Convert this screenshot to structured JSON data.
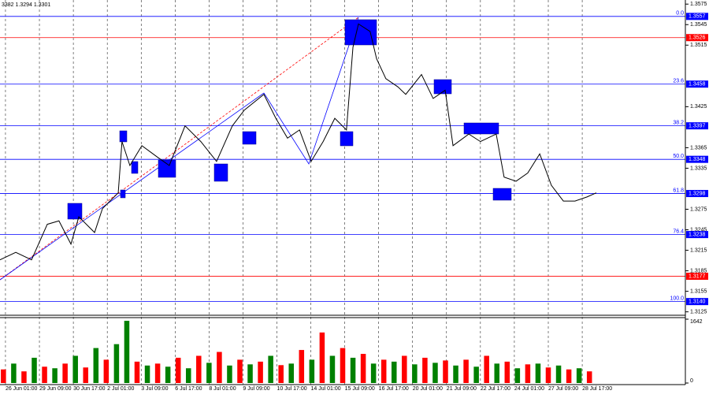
{
  "chart_data": {
    "type": "line",
    "header": "3382 1.3294 1.3301",
    "x": [
      0,
      4.6,
      9.2,
      13.8,
      17.2,
      20.7,
      23,
      27.6,
      29.9,
      34.5,
      35.6,
      37.9,
      41.4,
      46,
      49.4,
      54,
      58.6,
      63.2,
      67.8,
      71.3,
      77,
      80.5,
      83.9,
      87.4,
      90.8,
      94.3,
      97.7,
      101.1,
      103,
      104.6,
      108,
      109.9,
      112.6,
      116.1,
      118.4,
      123,
      126.4,
      129.9,
      132.2,
      136.8,
      140.2,
      144.8,
      147.1,
      150.6,
      154,
      157.5,
      160.9,
      164.4,
      167.8,
      171.3,
      174
    ],
    "series": [
      {
        "color": "#000000",
        "values": [
          1.3201,
          1.3212,
          1.3201,
          1.3253,
          1.3258,
          1.3224,
          1.3264,
          1.3241,
          1.3276,
          1.3299,
          1.3374,
          1.3339,
          1.3368,
          1.3351,
          1.3339,
          1.3397,
          1.3374,
          1.3345,
          1.3397,
          1.342,
          1.3443,
          1.3408,
          1.3379,
          1.3391,
          1.3345,
          1.3374,
          1.3408,
          1.3391,
          1.3512,
          1.3546,
          1.3535,
          1.3495,
          1.3466,
          1.3454,
          1.3443,
          1.3472,
          1.3437,
          1.3449,
          1.3368,
          1.3385,
          1.3374,
          1.3385,
          1.3322,
          1.3316,
          1.3328,
          1.3356,
          1.331,
          1.3287,
          1.3287,
          1.3293,
          1.3299
        ]
      }
    ],
    "xlim": [
      0,
      200
    ],
    "ylim": [
      1.312,
      1.3581
    ],
    "xticks": [
      {
        "value": 1.6,
        "label": "26 Jun 01:00"
      },
      {
        "value": 11.5,
        "label": "29 Jun 09:00"
      },
      {
        "value": 21.4,
        "label": "30 Jun 17:00"
      },
      {
        "value": 31.3,
        "label": "2 Jul 01:00"
      },
      {
        "value": 41.2,
        "label": "3 Jul 09:00"
      },
      {
        "value": 51.1,
        "label": "6 Jul 17:00"
      },
      {
        "value": 61,
        "label": "8 Jul 01:00"
      },
      {
        "value": 70.9,
        "label": "9 Jul 09:00"
      },
      {
        "value": 80.8,
        "label": "10 Jul 17:00"
      },
      {
        "value": 90.7,
        "label": "14 Jul 01:00"
      },
      {
        "value": 100.6,
        "label": "15 Jul 09:00"
      },
      {
        "value": 110.5,
        "label": "16 Jul 17:00"
      },
      {
        "value": 120.4,
        "label": "20 Jul 01:00"
      },
      {
        "value": 130.3,
        "label": "21 Jul 09:00"
      },
      {
        "value": 140.2,
        "label": "22 Jul 17:00"
      },
      {
        "value": 150.1,
        "label": "24 Jul 01:00"
      },
      {
        "value": 160,
        "label": "27 Jul 09:00"
      },
      {
        "value": 169.9,
        "label": "28 Jul 17:00"
      }
    ],
    "yticks": [
      1.3575,
      1.3545,
      1.3515,
      1.3425,
      1.3365,
      1.3335,
      1.3275,
      1.3245,
      1.3215,
      1.3185,
      1.3155,
      1.3125
    ],
    "levels": [
      {
        "value": 1.3557,
        "label": "1.3557",
        "fib": "0.0",
        "color": "#0000ff"
      },
      {
        "value": 1.3526,
        "label": "1.3526",
        "color": "#ff0000"
      },
      {
        "value": 1.3458,
        "label": "1.3458",
        "fib": "23.6",
        "color": "#0000ff"
      },
      {
        "value": 1.3397,
        "label": "1.3397",
        "fib": "38.2",
        "color": "#0000ff"
      },
      {
        "value": 1.3348,
        "label": "1.3348",
        "fib": "50.0",
        "color": "#0000ff"
      },
      {
        "value": 1.3298,
        "label": "1.3298",
        "fib": "61.8",
        "color": "#0000ff"
      },
      {
        "value": 1.3238,
        "label": "1.3238",
        "fib": "76.4",
        "color": "#0000ff"
      },
      {
        "value": 1.3177,
        "label": "1.3177",
        "color": "#ff0000"
      },
      {
        "value": 1.314,
        "label": "1.3140",
        "fib": "100.0",
        "color": "#0000ff"
      }
    ],
    "volume": {
      "x": [
        1,
        4,
        7,
        10,
        13,
        16,
        19,
        22,
        25,
        28,
        31,
        34,
        37,
        40,
        43,
        46,
        49,
        52,
        55,
        58,
        61,
        64,
        67,
        70,
        73,
        76,
        79,
        82,
        85,
        88,
        91,
        94,
        97,
        100,
        103,
        106,
        109,
        112,
        115,
        118,
        121,
        124,
        127,
        130,
        133,
        136,
        139,
        142,
        145,
        148,
        151,
        154,
        157,
        160,
        163,
        166,
        169,
        172
      ],
      "values": [
        350,
        500,
        300,
        650,
        420,
        380,
        500,
        700,
        400,
        900,
        600,
        1000,
        1600,
        550,
        450,
        500,
        420,
        650,
        380,
        700,
        520,
        800,
        450,
        600,
        480,
        550,
        700,
        460,
        500,
        850,
        600,
        1300,
        700,
        900,
        650,
        750,
        500,
        600,
        550,
        700,
        480,
        650,
        520,
        580,
        450,
        600,
        420,
        700,
        500,
        550,
        380,
        480,
        500,
        400,
        450,
        350,
        380,
        300
      ],
      "colors": [
        "#ff0000",
        "#008000",
        "#ff0000",
        "#008000",
        "#ff0000",
        "#008000",
        "#ff0000",
        "#008000",
        "#ff0000",
        "#008000",
        "#ff0000",
        "#008000",
        "#008000",
        "#ff0000",
        "#008000",
        "#ff0000",
        "#008000",
        "#ff0000",
        "#008000",
        "#ff0000",
        "#008000",
        "#ff0000",
        "#008000",
        "#ff0000",
        "#008000",
        "#ff0000",
        "#008000",
        "#ff0000",
        "#008000",
        "#ff0000",
        "#008000",
        "#ff0000",
        "#008000",
        "#ff0000",
        "#008000",
        "#ff0000",
        "#008000",
        "#ff0000",
        "#008000",
        "#ff0000",
        "#008000",
        "#ff0000",
        "#008000",
        "#ff0000",
        "#008000",
        "#ff0000",
        "#008000",
        "#ff0000",
        "#008000",
        "#ff0000",
        "#008000",
        "#ff0000",
        "#008000",
        "#ff0000",
        "#008000",
        "#ff0000",
        "#008000",
        "#ff0000"
      ],
      "ylim": [
        0,
        1642
      ],
      "yticks": [
        1642,
        0
      ]
    }
  }
}
